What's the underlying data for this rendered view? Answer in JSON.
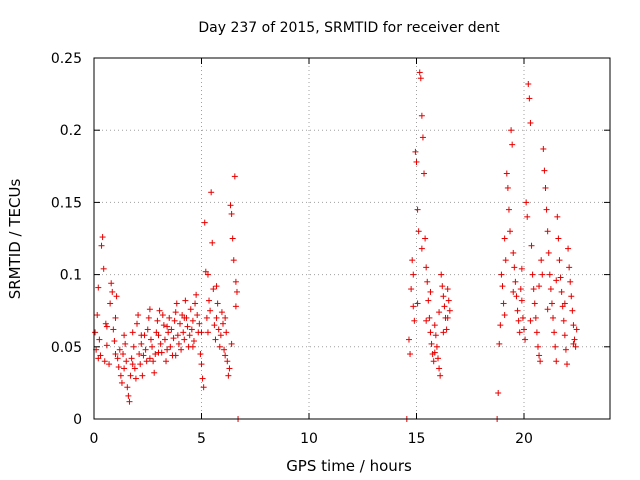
{
  "chart_data": {
    "type": "scatter",
    "title": "Day 237 of 2015, SRMTID for receiver dent",
    "xlabel": "GPS time / hours",
    "ylabel": "SRMTID / TECUs",
    "xlim": [
      0,
      24
    ],
    "ylim": [
      0,
      0.25
    ],
    "x_ticks": [
      {
        "value": 0,
        "label": "0"
      },
      {
        "value": 5,
        "label": "5"
      },
      {
        "value": 10,
        "label": "10"
      },
      {
        "value": 15,
        "label": "15"
      },
      {
        "value": 20,
        "label": "20"
      }
    ],
    "y_ticks": [
      {
        "value": 0,
        "label": "0"
      },
      {
        "value": 0.05,
        "label": "0.05"
      },
      {
        "value": 0.1,
        "label": "0.1"
      },
      {
        "value": 0.15,
        "label": "0.15"
      },
      {
        "value": 0.2,
        "label": "0.2"
      },
      {
        "value": 0.25,
        "label": "0.25"
      }
    ],
    "grid": true,
    "marker": "+",
    "color": "#e60000",
    "series": [
      {
        "name": "SRMTID",
        "points": [
          [
            0.05,
            0.06
          ],
          [
            0.1,
            0.048
          ],
          [
            0.15,
            0.072
          ],
          [
            0.2,
            0.091
          ],
          [
            0.25,
            0.055
          ],
          [
            0.3,
            0.044
          ],
          [
            0.35,
            0.12
          ],
          [
            0.4,
            0.126
          ],
          [
            0.45,
            0.104
          ],
          [
            0.5,
            0.04
          ],
          [
            0.55,
            0.066
          ],
          [
            0.6,
            0.051
          ],
          [
            0.7,
            0.038
          ],
          [
            0.75,
            0.08
          ],
          [
            0.8,
            0.094
          ],
          [
            0.85,
            0.088
          ],
          [
            0.9,
            0.062
          ],
          [
            0.95,
            0.054
          ],
          [
            1.0,
            0.07
          ],
          [
            1.05,
            0.085
          ],
          [
            1.1,
            0.042
          ],
          [
            1.15,
            0.036
          ],
          [
            1.2,
            0.048
          ],
          [
            1.25,
            0.03
          ],
          [
            1.3,
            0.025
          ],
          [
            1.35,
            0.045
          ],
          [
            1.4,
            0.058
          ],
          [
            1.45,
            0.052
          ],
          [
            1.5,
            0.04
          ],
          [
            1.55,
            0.022
          ],
          [
            1.6,
            0.016
          ],
          [
            1.65,
            0.012
          ],
          [
            1.7,
            0.03
          ],
          [
            1.75,
            0.042
          ],
          [
            1.8,
            0.06
          ],
          [
            1.85,
            0.05
          ],
          [
            1.9,
            0.035
          ],
          [
            1.95,
            0.028
          ],
          [
            2.0,
            0.066
          ],
          [
            2.05,
            0.072
          ],
          [
            2.1,
            0.045
          ],
          [
            2.15,
            0.038
          ],
          [
            2.2,
            0.052
          ],
          [
            2.25,
            0.03
          ],
          [
            2.3,
            0.044
          ],
          [
            2.35,
            0.058
          ],
          [
            2.4,
            0.048
          ],
          [
            2.45,
            0.04
          ],
          [
            2.5,
            0.062
          ],
          [
            2.55,
            0.07
          ],
          [
            2.6,
            0.076
          ],
          [
            2.65,
            0.055
          ],
          [
            2.7,
            0.05
          ],
          [
            2.75,
            0.04
          ],
          [
            2.8,
            0.032
          ],
          [
            2.85,
            0.045
          ],
          [
            2.9,
            0.06
          ],
          [
            2.95,
            0.068
          ],
          [
            3.0,
            0.058
          ],
          [
            3.05,
            0.075
          ],
          [
            3.1,
            0.052
          ],
          [
            3.15,
            0.046
          ],
          [
            3.2,
            0.072
          ],
          [
            3.25,
            0.065
          ],
          [
            3.3,
            0.055
          ],
          [
            3.35,
            0.04
          ],
          [
            3.4,
            0.048
          ],
          [
            3.45,
            0.06
          ],
          [
            3.5,
            0.07
          ],
          [
            3.55,
            0.05
          ],
          [
            3.6,
            0.062
          ],
          [
            3.65,
            0.044
          ],
          [
            3.7,
            0.056
          ],
          [
            3.75,
            0.068
          ],
          [
            3.8,
            0.074
          ],
          [
            3.85,
            0.08
          ],
          [
            3.9,
            0.058
          ],
          [
            3.95,
            0.052
          ],
          [
            4.0,
            0.066
          ],
          [
            4.05,
            0.048
          ],
          [
            4.1,
            0.072
          ],
          [
            4.15,
            0.06
          ],
          [
            4.2,
            0.055
          ],
          [
            4.25,
            0.082
          ],
          [
            4.3,
            0.07
          ],
          [
            4.35,
            0.064
          ],
          [
            4.4,
            0.05
          ],
          [
            4.45,
            0.058
          ],
          [
            4.5,
            0.076
          ],
          [
            4.55,
            0.062
          ],
          [
            4.6,
            0.068
          ],
          [
            4.65,
            0.054
          ],
          [
            4.7,
            0.08
          ],
          [
            4.75,
            0.086
          ],
          [
            4.8,
            0.072
          ],
          [
            4.85,
            0.06
          ],
          [
            4.9,
            0.066
          ],
          [
            4.95,
            0.045
          ],
          [
            5.0,
            0.038
          ],
          [
            5.05,
            0.028
          ],
          [
            5.1,
            0.022
          ],
          [
            5.15,
            0.136
          ],
          [
            5.2,
            0.102
          ],
          [
            5.25,
            0.07
          ],
          [
            5.3,
            0.06
          ],
          [
            5.35,
            0.082
          ],
          [
            5.4,
            0.075
          ],
          [
            5.45,
            0.157
          ],
          [
            5.5,
            0.122
          ],
          [
            5.55,
            0.09
          ],
          [
            5.6,
            0.065
          ],
          [
            5.65,
            0.055
          ],
          [
            5.7,
            0.07
          ],
          [
            5.75,
            0.08
          ],
          [
            5.8,
            0.062
          ],
          [
            5.85,
            0.05
          ],
          [
            5.9,
            0.058
          ],
          [
            5.95,
            0.074
          ],
          [
            6.0,
            0.066
          ],
          [
            6.05,
            0.048
          ],
          [
            6.1,
            0.044
          ],
          [
            6.15,
            0.06
          ],
          [
            6.2,
            0.04
          ],
          [
            6.25,
            0.03
          ],
          [
            6.3,
            0.035
          ],
          [
            6.35,
            0.148
          ],
          [
            6.4,
            0.142
          ],
          [
            6.45,
            0.125
          ],
          [
            6.5,
            0.11
          ],
          [
            6.55,
            0.168
          ],
          [
            6.6,
            0.095
          ],
          [
            6.65,
            0.088
          ],
          [
            6.7,
            0.0
          ],
          [
            0.2,
            0.042
          ],
          [
            0.6,
            0.064
          ],
          [
            1.0,
            0.045
          ],
          [
            1.4,
            0.035
          ],
          [
            1.8,
            0.038
          ],
          [
            2.2,
            0.058
          ],
          [
            2.6,
            0.042
          ],
          [
            3.0,
            0.046
          ],
          [
            3.4,
            0.064
          ],
          [
            3.8,
            0.044
          ],
          [
            4.2,
            0.07
          ],
          [
            4.6,
            0.05
          ],
          [
            5.0,
            0.06
          ],
          [
            5.3,
            0.1
          ],
          [
            5.7,
            0.092
          ],
          [
            6.1,
            0.07
          ],
          [
            6.4,
            0.052
          ],
          [
            6.6,
            0.078
          ],
          [
            14.55,
            0.0
          ],
          [
            14.65,
            0.055
          ],
          [
            14.7,
            0.045
          ],
          [
            14.75,
            0.09
          ],
          [
            14.8,
            0.11
          ],
          [
            14.85,
            0.078
          ],
          [
            14.9,
            0.068
          ],
          [
            14.95,
            0.185
          ],
          [
            15.0,
            0.178
          ],
          [
            15.05,
            0.145
          ],
          [
            15.1,
            0.13
          ],
          [
            15.15,
            0.24
          ],
          [
            15.2,
            0.236
          ],
          [
            15.25,
            0.21
          ],
          [
            15.3,
            0.195
          ],
          [
            15.35,
            0.17
          ],
          [
            15.4,
            0.125
          ],
          [
            15.45,
            0.105
          ],
          [
            15.5,
            0.095
          ],
          [
            15.55,
            0.082
          ],
          [
            15.6,
            0.07
          ],
          [
            15.65,
            0.06
          ],
          [
            15.7,
            0.052
          ],
          [
            15.75,
            0.045
          ],
          [
            15.8,
            0.04
          ],
          [
            15.85,
            0.065
          ],
          [
            15.9,
            0.058
          ],
          [
            15.95,
            0.05
          ],
          [
            16.0,
            0.042
          ],
          [
            16.05,
            0.035
          ],
          [
            16.1,
            0.03
          ],
          [
            16.15,
            0.1
          ],
          [
            16.2,
            0.092
          ],
          [
            16.25,
            0.085
          ],
          [
            16.3,
            0.078
          ],
          [
            16.35,
            0.07
          ],
          [
            16.4,
            0.062
          ],
          [
            16.45,
            0.09
          ],
          [
            16.5,
            0.082
          ],
          [
            16.55,
            0.075
          ],
          [
            14.85,
            0.1
          ],
          [
            15.05,
            0.08
          ],
          [
            15.25,
            0.118
          ],
          [
            15.45,
            0.068
          ],
          [
            15.65,
            0.088
          ],
          [
            15.85,
            0.046
          ],
          [
            16.05,
            0.074
          ],
          [
            16.25,
            0.06
          ],
          [
            16.45,
            0.07
          ],
          [
            18.75,
            0.0
          ],
          [
            18.8,
            0.018
          ],
          [
            18.85,
            0.052
          ],
          [
            18.9,
            0.065
          ],
          [
            18.95,
            0.1
          ],
          [
            19.0,
            0.092
          ],
          [
            19.05,
            0.08
          ],
          [
            19.1,
            0.125
          ],
          [
            19.15,
            0.11
          ],
          [
            19.2,
            0.17
          ],
          [
            19.25,
            0.16
          ],
          [
            19.3,
            0.145
          ],
          [
            19.35,
            0.13
          ],
          [
            19.4,
            0.2
          ],
          [
            19.45,
            0.19
          ],
          [
            19.5,
            0.115
          ],
          [
            19.55,
            0.105
          ],
          [
            19.6,
            0.095
          ],
          [
            19.65,
            0.085
          ],
          [
            19.7,
            0.075
          ],
          [
            19.75,
            0.068
          ],
          [
            19.8,
            0.06
          ],
          [
            19.85,
            0.09
          ],
          [
            19.9,
            0.082
          ],
          [
            19.95,
            0.07
          ],
          [
            20.0,
            0.062
          ],
          [
            20.05,
            0.055
          ],
          [
            20.1,
            0.15
          ],
          [
            20.15,
            0.14
          ],
          [
            20.2,
            0.232
          ],
          [
            20.25,
            0.222
          ],
          [
            20.3,
            0.205
          ],
          [
            20.35,
            0.12
          ],
          [
            20.4,
            0.1
          ],
          [
            20.45,
            0.09
          ],
          [
            20.5,
            0.08
          ],
          [
            20.55,
            0.07
          ],
          [
            20.6,
            0.06
          ],
          [
            20.65,
            0.05
          ],
          [
            20.7,
            0.044
          ],
          [
            20.75,
            0.04
          ],
          [
            20.8,
            0.11
          ],
          [
            20.85,
            0.1
          ],
          [
            20.9,
            0.187
          ],
          [
            20.95,
            0.172
          ],
          [
            21.0,
            0.16
          ],
          [
            21.05,
            0.145
          ],
          [
            21.1,
            0.13
          ],
          [
            21.15,
            0.115
          ],
          [
            21.2,
            0.1
          ],
          [
            21.25,
            0.09
          ],
          [
            21.3,
            0.08
          ],
          [
            21.35,
            0.07
          ],
          [
            21.4,
            0.06
          ],
          [
            21.45,
            0.05
          ],
          [
            21.5,
            0.04
          ],
          [
            21.55,
            0.14
          ],
          [
            21.6,
            0.125
          ],
          [
            21.65,
            0.11
          ],
          [
            21.7,
            0.098
          ],
          [
            21.75,
            0.088
          ],
          [
            21.8,
            0.078
          ],
          [
            21.85,
            0.068
          ],
          [
            21.9,
            0.058
          ],
          [
            21.95,
            0.048
          ],
          [
            22.0,
            0.038
          ],
          [
            22.05,
            0.118
          ],
          [
            22.1,
            0.105
          ],
          [
            22.15,
            0.095
          ],
          [
            22.2,
            0.085
          ],
          [
            22.25,
            0.075
          ],
          [
            22.3,
            0.065
          ],
          [
            22.35,
            0.055
          ],
          [
            22.4,
            0.05
          ],
          [
            22.45,
            0.062
          ],
          [
            19.1,
            0.072
          ],
          [
            19.5,
            0.088
          ],
          [
            19.9,
            0.104
          ],
          [
            20.3,
            0.068
          ],
          [
            20.7,
            0.092
          ],
          [
            21.1,
            0.076
          ],
          [
            21.5,
            0.096
          ],
          [
            21.9,
            0.08
          ],
          [
            22.3,
            0.052
          ]
        ]
      }
    ]
  }
}
